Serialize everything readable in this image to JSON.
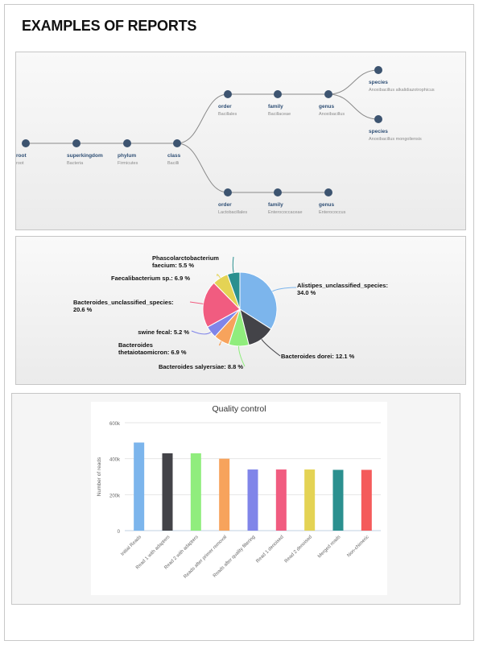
{
  "page": {
    "title": "EXAMPLES OF REPORTS"
  },
  "taxonomy_tree": {
    "nodes": [
      {
        "rank": "root",
        "name": "root"
      },
      {
        "rank": "superkingdom",
        "name": "Bacteria"
      },
      {
        "rank": "phylum",
        "name": "Firmicutes"
      },
      {
        "rank": "class",
        "name": "Bacilli"
      },
      {
        "rank": "order",
        "name": "Bacillales"
      },
      {
        "rank": "family",
        "name": "Bacillaceae"
      },
      {
        "rank": "genus",
        "name": "Anoxibacillus"
      },
      {
        "rank": "species",
        "name": "Anoxibacillus alkalidiazotrophicus"
      },
      {
        "rank": "species",
        "name": "Anoxibacillus mongoliensis"
      },
      {
        "rank": "order",
        "name": "Lactobacillales"
      },
      {
        "rank": "family",
        "name": "Enterococcaceae"
      },
      {
        "rank": "genus",
        "name": "Enterococcus"
      }
    ],
    "colors": {
      "node": "#3d5470",
      "link": "#8a8a8a",
      "rank_text": "#2f4f75",
      "name_text": "#8a8a8a"
    }
  },
  "pie_chart": {
    "chart_data": {
      "type": "pie",
      "slices": [
        {
          "label": "Alistipes_unclassified_species:",
          "value": 34.0,
          "value_label": "34.0 %",
          "color": "#7cb5ec"
        },
        {
          "label": "Bacteroides dorei:",
          "value": 12.1,
          "value_label": "12.1 %",
          "color": "#434348"
        },
        {
          "label": "Bacteroides salyersiae:",
          "value": 8.8,
          "value_label": "8.8 %",
          "color": "#90ed7d"
        },
        {
          "label": "Bacteroides thetaiotaomicron:",
          "value": 6.9,
          "value_label": "6.9 %",
          "color": "#f7a35c"
        },
        {
          "label": "swine fecal:",
          "value": 5.2,
          "value_label": "5.2 %",
          "color": "#8085e9"
        },
        {
          "label": "Bacteroides_unclassified_species:",
          "value": 20.6,
          "value_label": "20.6 %",
          "color": "#f15c80"
        },
        {
          "label": "Faecalibacterium sp.:",
          "value": 6.9,
          "value_label": "6.9 %",
          "color": "#e4d354"
        },
        {
          "label": "Phascolarctobacterium faecium:",
          "value": 5.5,
          "value_label": "5.5 %",
          "color": "#2b908f"
        }
      ],
      "label_lines": [
        {
          "text": "Alistipes_unclassified_species:",
          "bold": true
        },
        {
          "text": "34.0 %"
        },
        {
          "text": "Bacteroides dorei: 12.1 %"
        },
        {
          "text": "Bacteroides salyersiae: 8.8 %"
        },
        {
          "text": "Bacteroides"
        },
        {
          "text": "thetaiotaomicron: 6.9 %"
        },
        {
          "text": "swine fecal: 5.2 %"
        },
        {
          "text": "Bacteroides_unclassified_species:"
        },
        {
          "text": "20.6 %"
        },
        {
          "text": "Faecalibacterium sp.: 6.9 %"
        },
        {
          "text": "Phascolarctobacterium"
        },
        {
          "text": "faecium: 5.5 %"
        }
      ]
    }
  },
  "quality_control": {
    "chart_data": {
      "type": "bar",
      "title": "Quality control",
      "ylabel": "Number of reads",
      "xlabel": "",
      "ylim": [
        0,
        600000
      ],
      "yticks": [
        0,
        200000,
        400000,
        600000
      ],
      "ytick_labels": [
        "0",
        "200k",
        "400k",
        "600k"
      ],
      "categories": [
        "Initial Reads",
        "Read 1 with adapters",
        "Read 2 with adapters",
        "Reads after primer removal",
        "Reads after quality filtering",
        "Read 1 denoised",
        "Read 2 denoised",
        "Merged reads",
        "Non-chimeric"
      ],
      "values": [
        490000,
        430000,
        430000,
        400000,
        340000,
        340000,
        340000,
        338000,
        338000
      ],
      "colors": [
        "#7cb5ec",
        "#434348",
        "#90ed7d",
        "#f7a35c",
        "#8085e9",
        "#f15c80",
        "#e4d354",
        "#2b908f",
        "#f45b5b"
      ],
      "grid": true
    }
  }
}
